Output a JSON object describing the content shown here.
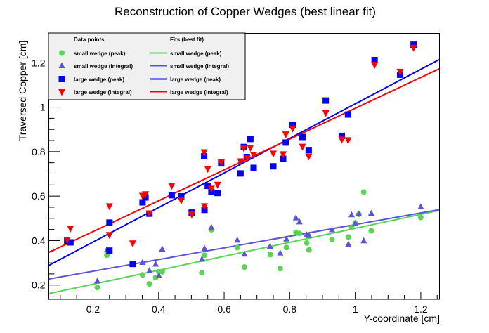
{
  "chart_data": {
    "type": "scatter",
    "title": "Reconstruction of Copper Wedges (best linear fit)",
    "xlabel": "Y-coordinate [cm]",
    "ylabel": "Traversed Copper [cm]",
    "xlim": [
      0.065,
      1.257
    ],
    "ylim": [
      0.136,
      1.332
    ],
    "xticks": [
      0.2,
      0.4,
      0.6,
      0.8,
      1.0,
      1.2
    ],
    "xtick_labels": [
      "0.2",
      "0.4",
      "0.6",
      "0.8",
      "1",
      "1.2"
    ],
    "yticks": [
      0.2,
      0.4,
      0.6,
      0.8,
      1.0,
      1.2
    ],
    "ytick_labels": [
      "0.2",
      "0.4",
      "0.6",
      "0.8",
      "1",
      "1.2"
    ],
    "minor_tick_step": 0.05,
    "grid": false,
    "legend": {
      "placement": "top-left",
      "points_header": "Data points",
      "fits_header": "Fits (best fit)"
    },
    "series": [
      {
        "name": "small wedge (peak)",
        "marker": "circle",
        "color": "#59d454",
        "x": [
          0.213,
          0.242,
          0.351,
          0.372,
          0.391,
          0.401,
          0.411,
          0.532,
          0.54,
          0.561,
          0.64,
          0.662,
          0.741,
          0.771,
          0.79,
          0.819,
          0.83,
          0.852,
          0.859,
          0.929,
          0.979,
          0.989,
          1.0,
          1.011,
          1.026,
          1.049,
          1.2
        ],
        "y": [
          0.189,
          0.334,
          0.246,
          0.205,
          0.234,
          0.26,
          0.26,
          0.255,
          0.334,
          0.449,
          0.368,
          0.281,
          0.337,
          0.274,
          0.369,
          0.436,
          0.432,
          0.389,
          0.358,
          0.404,
          0.416,
          0.46,
          0.479,
          0.518,
          0.618,
          0.444,
          0.504
        ]
      },
      {
        "name": "small wedge (integral)",
        "marker": "triangle-up",
        "color": "#5954d8",
        "x": [
          0.213,
          0.242,
          0.351,
          0.372,
          0.391,
          0.401,
          0.411,
          0.532,
          0.54,
          0.561,
          0.64,
          0.662,
          0.74,
          0.771,
          0.79,
          0.819,
          0.83,
          0.852,
          0.859,
          0.929,
          0.979,
          0.989,
          1.0,
          1.011,
          1.026,
          1.049,
          1.2
        ],
        "y": [
          0.218,
          0.358,
          0.302,
          0.265,
          0.294,
          0.242,
          0.362,
          0.316,
          0.365,
          0.46,
          0.402,
          0.339,
          0.374,
          0.344,
          0.407,
          0.502,
          0.484,
          0.426,
          0.423,
          0.449,
          0.384,
          0.516,
          0.478,
          0.52,
          0.399,
          0.523,
          0.552
        ]
      },
      {
        "name": "large wedge (peak)",
        "marker": "square",
        "color": "#0000ff",
        "x": [
          0.121,
          0.131,
          0.25,
          0.25,
          0.321,
          0.351,
          0.36,
          0.372,
          0.44,
          0.469,
          0.501,
          0.539,
          0.54,
          0.55,
          0.561,
          0.58,
          0.591,
          0.65,
          0.66,
          0.669,
          0.68,
          0.69,
          0.75,
          0.78,
          0.788,
          0.809,
          0.839,
          0.858,
          0.91,
          0.959,
          0.978,
          1.059,
          1.137,
          1.178
        ],
        "y": [
          0.399,
          0.392,
          0.481,
          0.355,
          0.295,
          0.572,
          0.594,
          0.521,
          0.604,
          0.599,
          0.526,
          0.779,
          0.538,
          0.646,
          0.618,
          0.614,
          0.747,
          0.702,
          0.821,
          0.776,
          0.857,
          0.727,
          0.734,
          0.768,
          0.841,
          0.921,
          0.866,
          0.807,
          1.03,
          0.871,
          0.967,
          1.212,
          1.146,
          1.281
        ]
      },
      {
        "name": "large wedge (integral)",
        "marker": "triangle-down",
        "color": "#ff0000",
        "x": [
          0.121,
          0.131,
          0.25,
          0.25,
          0.321,
          0.351,
          0.36,
          0.372,
          0.44,
          0.469,
          0.501,
          0.539,
          0.54,
          0.55,
          0.561,
          0.58,
          0.591,
          0.65,
          0.66,
          0.67,
          0.68,
          0.69,
          0.75,
          0.78,
          0.788,
          0.809,
          0.839,
          0.858,
          0.91,
          0.959,
          0.978,
          1.059,
          1.137,
          1.178
        ],
        "y": [
          0.404,
          0.455,
          0.555,
          0.426,
          0.388,
          0.602,
          0.609,
          0.523,
          0.647,
          0.581,
          0.518,
          0.798,
          0.555,
          0.723,
          0.634,
          0.652,
          0.752,
          0.757,
          0.816,
          0.77,
          0.818,
          0.786,
          0.792,
          0.789,
          0.878,
          0.905,
          0.823,
          0.779,
          0.974,
          0.855,
          0.852,
          1.191,
          1.16,
          1.268
        ]
      }
    ],
    "fits": [
      {
        "name": "small wedge (peak)",
        "color": "#59d454",
        "slope": 0.314,
        "intercept": 0.141
      },
      {
        "name": "small wedge (integral)",
        "color": "#5954d8",
        "slope": 0.262,
        "intercept": 0.21
      },
      {
        "name": "large wedge (peak)",
        "color": "#0000ff",
        "slope": 0.777,
        "intercept": 0.238
      },
      {
        "name": "large wedge (integral)",
        "color": "#ff0000",
        "slope": 0.693,
        "intercept": 0.302
      }
    ]
  }
}
